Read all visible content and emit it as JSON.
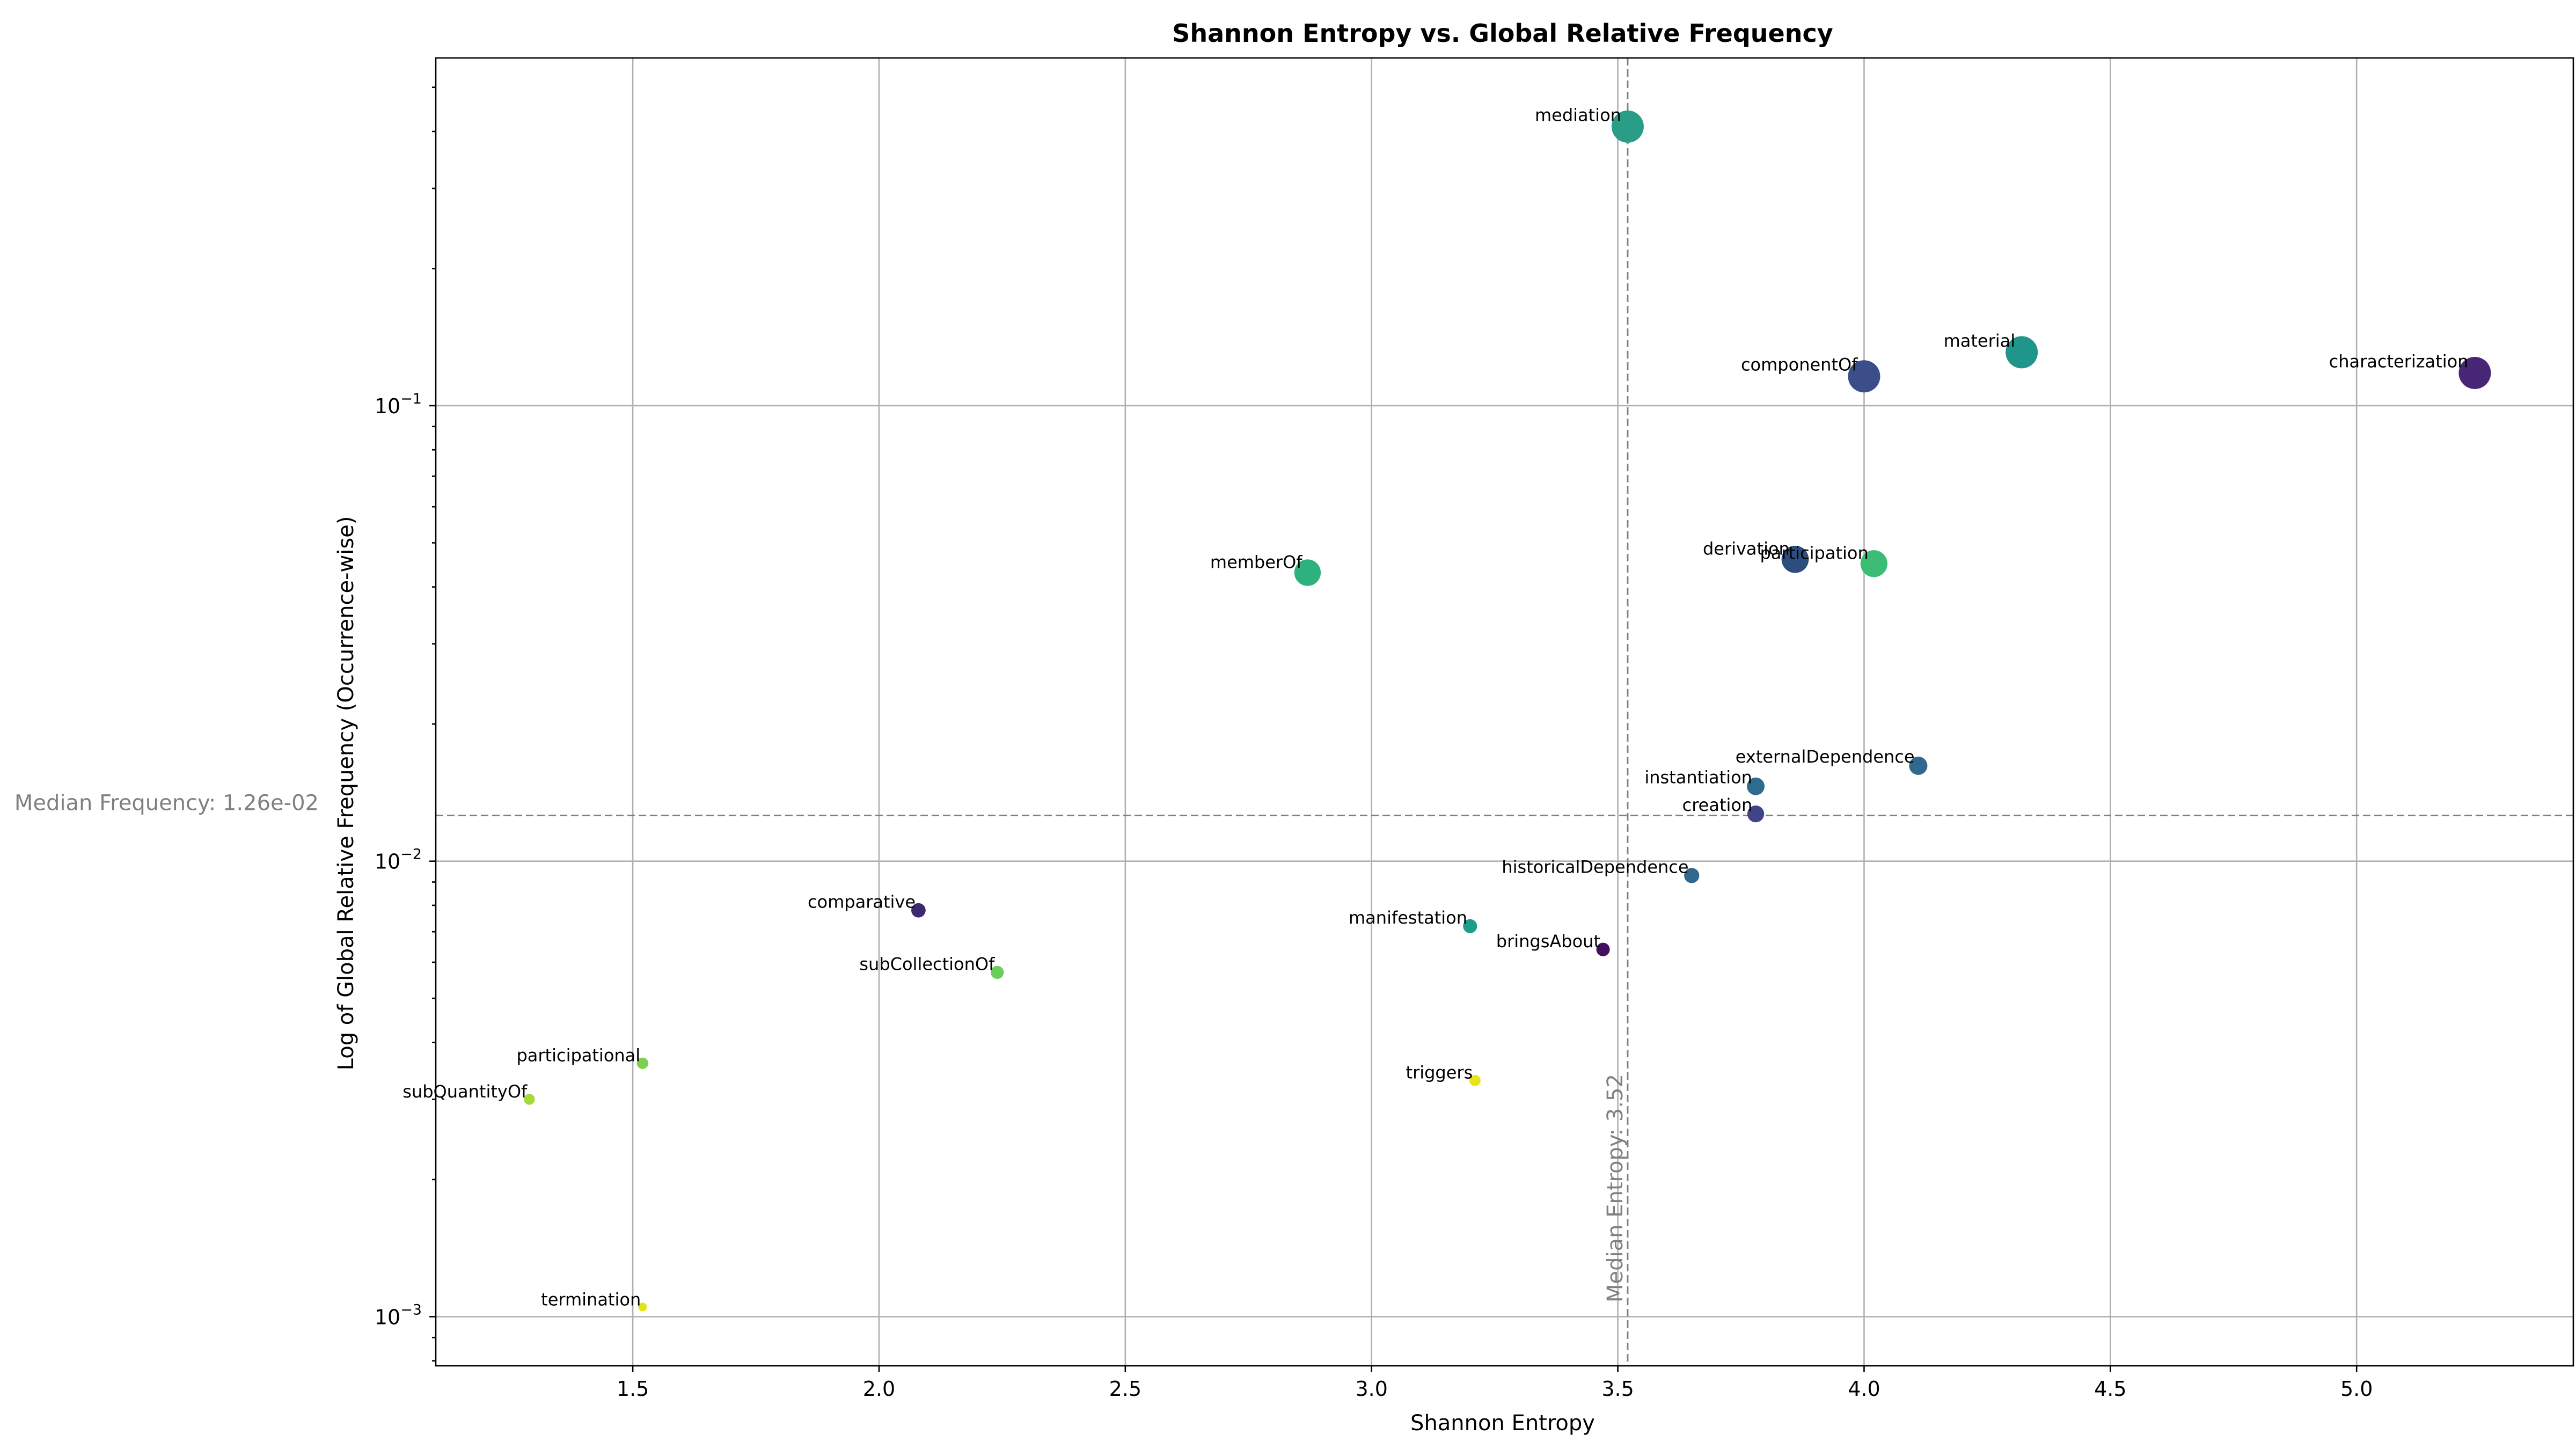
{
  "chart_data": {
    "type": "scatter",
    "title": "Shannon Entropy vs. Global Relative Frequency",
    "xlabel": "Shannon Entropy",
    "ylabel": "Log of Global Relative Frequency (Occurrence-wise)",
    "xscale": "linear",
    "yscale": "log",
    "xlim": [
      1.1,
      5.44
    ],
    "ylim": [
      0.00078,
      0.58
    ],
    "grid": true,
    "xticks": [
      {
        "value": 1.5,
        "label": "1.5"
      },
      {
        "value": 2.0,
        "label": "2.0"
      },
      {
        "value": 2.5,
        "label": "2.5"
      },
      {
        "value": 3.0,
        "label": "3.0"
      },
      {
        "value": 3.5,
        "label": "3.5"
      },
      {
        "value": 4.0,
        "label": "4.0"
      },
      {
        "value": 4.5,
        "label": "4.5"
      },
      {
        "value": 5.0,
        "label": "5.0"
      }
    ],
    "yticks": [
      {
        "value": 0.001,
        "base": "10",
        "exp": "−3"
      },
      {
        "value": 0.01,
        "base": "10",
        "exp": "−2"
      },
      {
        "value": 0.1,
        "base": "10",
        "exp": "−1"
      }
    ],
    "median_entropy": {
      "value": 3.52,
      "label": "Median Entropy: 3.52"
    },
    "median_frequency": {
      "value": 0.0126,
      "label": "Median Frequency: 1.26e-02"
    },
    "points": [
      {
        "label": "mediation",
        "x": 3.52,
        "y": 0.41,
        "color": "#2a9d87"
      },
      {
        "label": "material",
        "x": 4.32,
        "y": 0.131,
        "color": "#20958b"
      },
      {
        "label": "characterization",
        "x": 5.24,
        "y": 0.118,
        "color": "#482677"
      },
      {
        "label": "componentOf",
        "x": 4.0,
        "y": 0.116,
        "color": "#3b4e8a"
      },
      {
        "label": "derivation",
        "x": 3.86,
        "y": 0.046,
        "color": "#2c4d7e"
      },
      {
        "label": "participation",
        "x": 4.02,
        "y": 0.045,
        "color": "#3cbc74"
      },
      {
        "label": "memberOf",
        "x": 2.87,
        "y": 0.043,
        "color": "#2db27d"
      },
      {
        "label": "externalDependence",
        "x": 4.11,
        "y": 0.0162,
        "color": "#31688e"
      },
      {
        "label": "instantiation",
        "x": 3.78,
        "y": 0.0146,
        "color": "#2f6b8e"
      },
      {
        "label": "creation",
        "x": 3.78,
        "y": 0.0127,
        "color": "#404588"
      },
      {
        "label": "historicalDependence",
        "x": 3.65,
        "y": 0.0093,
        "color": "#31688e"
      },
      {
        "label": "comparative",
        "x": 2.08,
        "y": 0.0078,
        "color": "#3b2a72"
      },
      {
        "label": "manifestation",
        "x": 3.2,
        "y": 0.0072,
        "color": "#1e9b8a"
      },
      {
        "label": "bringsAbout",
        "x": 3.47,
        "y": 0.0064,
        "color": "#440f5f"
      },
      {
        "label": "subCollectionOf",
        "x": 2.24,
        "y": 0.0057,
        "color": "#6ccd5a"
      },
      {
        "label": "participational",
        "x": 1.52,
        "y": 0.0036,
        "color": "#7ad151"
      },
      {
        "label": "triggers",
        "x": 3.21,
        "y": 0.0033,
        "color": "#e8e419"
      },
      {
        "label": "subQuantityOf",
        "x": 1.29,
        "y": 0.003,
        "color": "#a5db36"
      },
      {
        "label": "termination",
        "x": 1.52,
        "y": 0.00105,
        "color": "#e3e418"
      }
    ]
  }
}
